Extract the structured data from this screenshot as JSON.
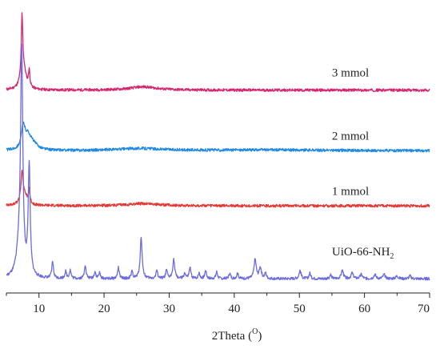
{
  "chart_data": {
    "type": "line",
    "title": "",
    "xlabel": "2Theta (",
    "xlabel_sup": "O",
    "xlabel_end": ")",
    "ylabel": "",
    "xlim": [
      5,
      70
    ],
    "ylim": [
      0,
      100
    ],
    "x_ticks": [
      10,
      20,
      30,
      40,
      50,
      60,
      70
    ],
    "grid": false,
    "legend": "none",
    "series": [
      {
        "name": "3 mmol",
        "color": "#d6266e",
        "label_x": 55,
        "label_y": 74,
        "baseline": 69,
        "noise": 0.5,
        "peaks": [
          [
            7.4,
            21,
            0.13
          ],
          [
            7.6,
            8,
            0.5
          ],
          [
            8.5,
            6,
            0.12
          ],
          [
            26,
            1.2,
            2.5
          ]
        ]
      },
      {
        "name": "2 mmol",
        "color": "#1e88e5",
        "label_x": 55,
        "label_y": 51,
        "baseline": 47,
        "noise": 0.5,
        "peaks": [
          [
            7.6,
            8,
            0.35
          ],
          [
            8.3,
            4,
            0.5
          ],
          [
            9,
            2.5,
            0.9
          ],
          [
            25.5,
            0.8,
            4
          ],
          [
            45,
            0.3,
            10
          ]
        ]
      },
      {
        "name": "1 mmol",
        "color": "#e53935",
        "label_x": 55,
        "label_y": 31,
        "baseline": 27,
        "noise": 0.5,
        "peaks": [
          [
            7.4,
            10,
            0.18
          ],
          [
            7.7,
            4,
            0.6
          ],
          [
            8.5,
            5,
            0.12
          ],
          [
            26,
            0.8,
            3
          ]
        ]
      },
      {
        "name": "UiO-66-NH",
        "name_sub": "2",
        "color": "#6b6be0",
        "label_x": 55,
        "label_y": 9,
        "baseline": 0.5,
        "noise": 0.5,
        "peaks": [
          [
            7.35,
            78,
            0.2
          ],
          [
            7.0,
            10,
            0.5
          ],
          [
            8.5,
            40,
            0.18
          ],
          [
            12.1,
            6,
            0.15
          ],
          [
            14.1,
            2.5,
            0.15
          ],
          [
            14.8,
            3,
            0.15
          ],
          [
            17.1,
            5,
            0.15
          ],
          [
            18.6,
            2.5,
            0.15
          ],
          [
            19.3,
            2,
            0.15
          ],
          [
            22.2,
            4,
            0.15
          ],
          [
            24.3,
            2.5,
            0.15
          ],
          [
            25.7,
            15,
            0.18
          ],
          [
            28.1,
            3,
            0.15
          ],
          [
            29.6,
            3,
            0.15
          ],
          [
            30.7,
            7,
            0.18
          ],
          [
            32.4,
            2,
            0.15
          ],
          [
            33.2,
            4,
            0.15
          ],
          [
            34.6,
            2,
            0.15
          ],
          [
            35.6,
            3,
            0.15
          ],
          [
            37.3,
            2.5,
            0.15
          ],
          [
            39.3,
            2,
            0.15
          ],
          [
            40.5,
            2,
            0.15
          ],
          [
            43.2,
            7,
            0.2
          ],
          [
            44.0,
            4,
            0.2
          ],
          [
            44.8,
            2,
            0.15
          ],
          [
            50.1,
            3,
            0.18
          ],
          [
            51.6,
            2,
            0.15
          ],
          [
            54.8,
            1.5,
            0.15
          ],
          [
            56.6,
            3,
            0.2
          ],
          [
            58.1,
            2,
            0.2
          ],
          [
            59.5,
            1.5,
            0.2
          ],
          [
            61.6,
            1.5,
            0.2
          ],
          [
            63.0,
            1.5,
            0.2
          ],
          [
            65.0,
            1,
            0.2
          ],
          [
            67.0,
            1,
            0.2
          ]
        ]
      }
    ]
  }
}
